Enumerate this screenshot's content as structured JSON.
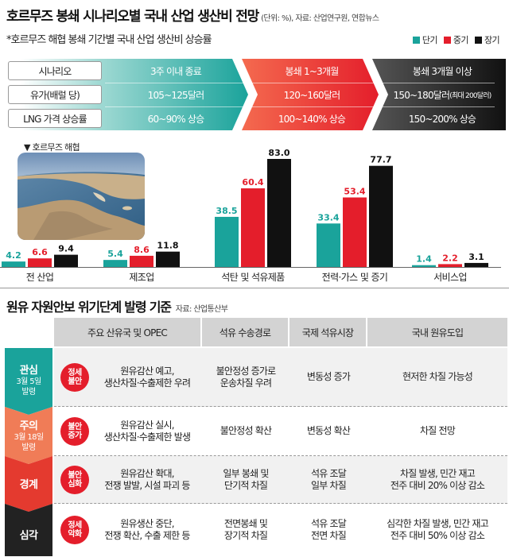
{
  "header": {
    "title": "호르무즈 봉쇄 시나리오별 국내 산업 생산비 전망",
    "unit_source": "(단위: %), 자료: 산업연구원, 연합뉴스",
    "subtitle": "*호르무즈 해협 봉쇄 기간별 국내 산업 생산비 상승률"
  },
  "legend": [
    {
      "label": "단기",
      "color": "#1aa39b"
    },
    {
      "label": "중기",
      "color": "#e41e2b"
    },
    {
      "label": "장기",
      "color": "#111111"
    }
  ],
  "scenario": {
    "row_labels": [
      "시나리오",
      "유가(배럴 당)",
      "LNG 가격 상승률"
    ],
    "short": [
      "3주 이내 종료",
      "105~125달러",
      "60~90% 상승"
    ],
    "mid": [
      "봉쇄 1~3개월",
      "120~160달러",
      "100~140% 상승"
    ],
    "long": [
      "봉쇄 3개월 이상",
      "150~180달러",
      "(최대 200달러)",
      "150~200% 상승"
    ]
  },
  "photo": {
    "caption": "▼ 호르무즈 해협"
  },
  "chart_data": {
    "type": "bar",
    "categories": [
      "전 산업",
      "제조업",
      "석탄 및 석유제품",
      "전력·가스 및 증기",
      "서비스업"
    ],
    "series": [
      {
        "name": "단기",
        "color": "#1aa39b",
        "values": [
          4.2,
          5.4,
          38.5,
          33.4,
          1.4
        ]
      },
      {
        "name": "중기",
        "color": "#e41e2b",
        "values": [
          6.6,
          8.6,
          60.4,
          53.4,
          2.2
        ]
      },
      {
        "name": "장기",
        "color": "#111111",
        "values": [
          9.4,
          11.8,
          83.0,
          77.7,
          3.1
        ]
      }
    ],
    "value_labels": [
      [
        "4.2",
        "6.6",
        "9.4"
      ],
      [
        "5.4",
        "8.6",
        "11.8"
      ],
      [
        "38.5",
        "60.4",
        "83.0"
      ],
      [
        "33.4",
        "53.4",
        "77.7"
      ],
      [
        "1.4",
        "2.2",
        "3.1"
      ]
    ],
    "ylim": [
      0,
      90
    ]
  },
  "section2": {
    "title": "원유 자원안보 위기단계 발령 기준",
    "source": "자료: 산업통산부",
    "headers": [
      "주요 산유국 및 OPEC",
      "석유 수송경로",
      "국제 석유시장",
      "국내 원유도입"
    ],
    "rows": [
      {
        "level": "관심",
        "date": [
          "3월 5일",
          "발령"
        ],
        "level_color": "#1aa39b",
        "badge": [
          "정세",
          "불안"
        ],
        "badge_color": "#e41e2b",
        "cells": [
          [
            "원유감산 예고,",
            "생산차질·수출제한 우려"
          ],
          [
            "불안정성 증가로",
            "운송차질 우려"
          ],
          [
            "변동성 증가"
          ],
          [
            "현저한 차질 가능성"
          ]
        ]
      },
      {
        "level": "주의",
        "date": [
          "3월 18일",
          "발령"
        ],
        "level_color": "#f07c57",
        "badge": [
          "불안",
          "증가"
        ],
        "badge_color": "#e41e2b",
        "cells": [
          [
            "원유감산 실시,",
            "생산차질·수출제한 발생"
          ],
          [
            "불안정성 확산"
          ],
          [
            "변동성 확산"
          ],
          [
            "차질 전망"
          ]
        ]
      },
      {
        "level": "경계",
        "date": [],
        "level_color": "#e43a2f",
        "badge": [
          "불안",
          "심화"
        ],
        "badge_color": "#e41e2b",
        "cells": [
          [
            "원유감산 확대,",
            "전쟁 발발, 시설 파괴 등"
          ],
          [
            "일부 봉쇄 및",
            "단기적 차질"
          ],
          [
            "석유 조달",
            "일부 차질"
          ],
          [
            "차질 발생, 민간 재고",
            "전주 대비 20% 이상 감소"
          ]
        ]
      },
      {
        "level": "심각",
        "date": [],
        "level_color": "#222222",
        "badge": [
          "정세",
          "악화"
        ],
        "badge_color": "#e41e2b",
        "cells": [
          [
            "원유생산 중단,",
            "전쟁 확산, 수출 제한 등"
          ],
          [
            "전면봉쇄 및",
            "장기적 차질"
          ],
          [
            "석유 조달",
            "전면 차질"
          ],
          [
            "심각한 차질 발생, 민간 재고",
            "전주 대비 50% 이상 감소"
          ]
        ]
      }
    ]
  }
}
